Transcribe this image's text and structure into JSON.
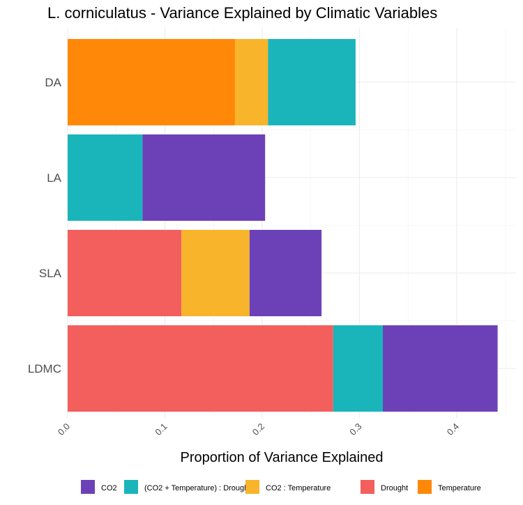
{
  "chart_data": {
    "type": "bar",
    "orientation": "horizontal",
    "stacked": true,
    "title": "L. corniculatus - Variance Explained by Climatic Variables",
    "xlabel": "Proportion of Variance Explained",
    "ylabel": "",
    "xlim": [
      0,
      0.44
    ],
    "x_ticks": [
      "0.0",
      "0.1",
      "0.2",
      "0.3",
      "0.4"
    ],
    "x_tick_values": [
      0.0,
      0.1,
      0.2,
      0.3,
      0.4
    ],
    "grid": true,
    "legend_position": "bottom",
    "categories": [
      "DA",
      "LA",
      "SLA",
      "LDMC"
    ],
    "legend": [
      {
        "name": "CO2",
        "color": "#6c41b8"
      },
      {
        "name": "(CO2 + Temperature) : Drought",
        "color": "#1ab5ba"
      },
      {
        "name": "CO2 : Temperature",
        "color": "#f8b42a"
      },
      {
        "name": "Drought",
        "color": "#f25f5c"
      },
      {
        "name": "Temperature",
        "color": "#ff8809"
      }
    ],
    "bars": [
      {
        "category": "DA",
        "segments": [
          {
            "series": "Temperature",
            "value": 0.172
          },
          {
            "series": "CO2 : Temperature",
            "value": 0.034
          },
          {
            "series": "(CO2 + Temperature) : Drought",
            "value": 0.09
          }
        ]
      },
      {
        "category": "LA",
        "segments": [
          {
            "series": "(CO2 + Temperature) : Drought",
            "value": 0.077
          },
          {
            "series": "CO2",
            "value": 0.126
          }
        ]
      },
      {
        "category": "SLA",
        "segments": [
          {
            "series": "Drought",
            "value": 0.117
          },
          {
            "series": "CO2 : Temperature",
            "value": 0.07
          },
          {
            "series": "CO2",
            "value": 0.074
          }
        ]
      },
      {
        "category": "LDMC",
        "segments": [
          {
            "series": "Drought",
            "value": 0.273
          },
          {
            "series": "(CO2 + Temperature) : Drought",
            "value": 0.051
          },
          {
            "series": "CO2",
            "value": 0.118
          }
        ]
      }
    ]
  }
}
